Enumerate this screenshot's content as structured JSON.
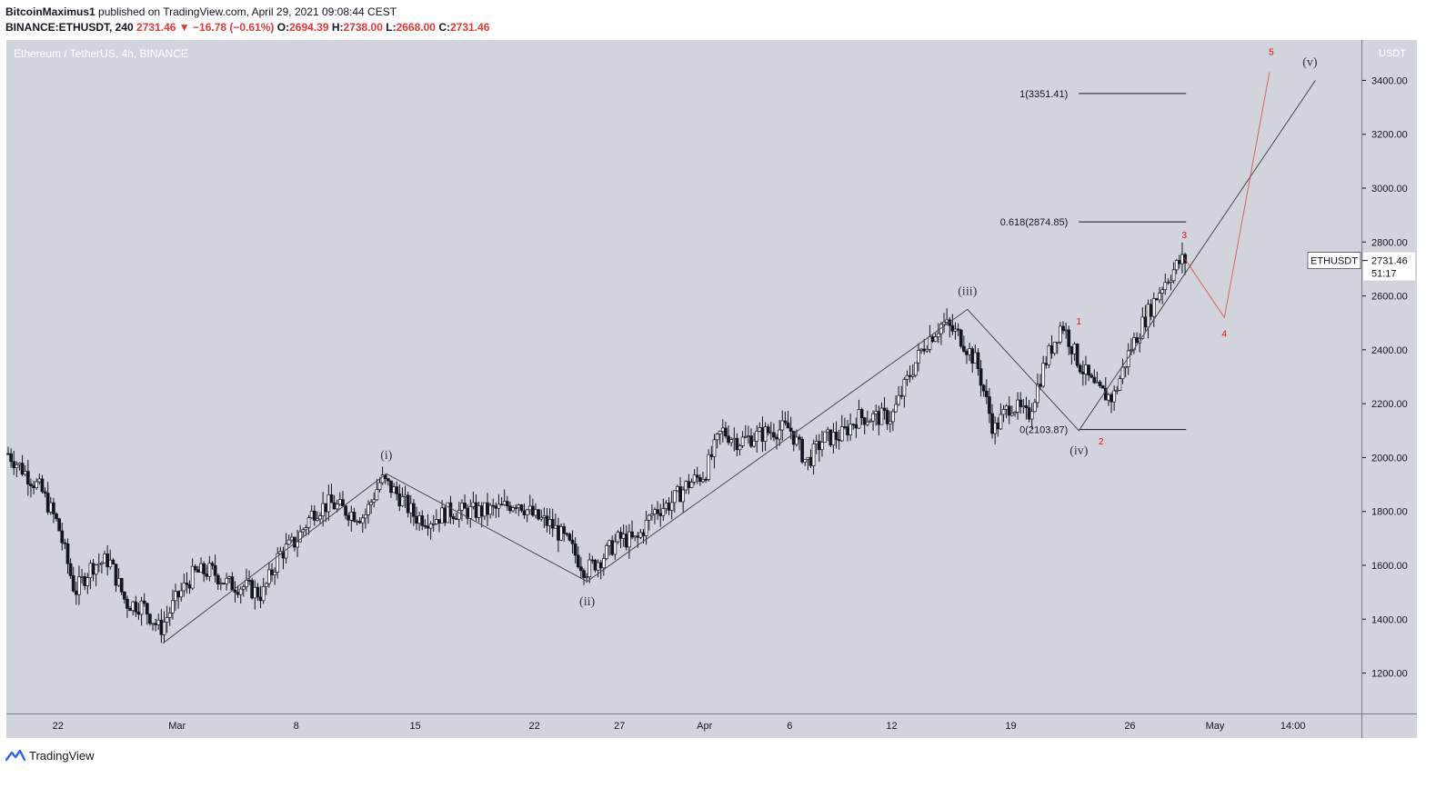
{
  "header": {
    "author": "BitcoinMaximus1",
    "published_text": " published on TradingView.com, April 29, 2021 09:08:44 CEST",
    "symbol_line": "BINANCE:ETHUSDT, 240",
    "last": "2731.46",
    "change_arrow": "▼",
    "change": "−16.78 (−0.61%)",
    "o_label": "O:",
    "o_value": "2694.39",
    "h_label": "H:",
    "h_value": "2738.00",
    "l_label": "L:",
    "l_value": "2668.00",
    "c_label": "C:",
    "c_value": "2731.46"
  },
  "chart_title": "Ethereum / TetherUS, 4h, BINANCE",
  "footer": {
    "brand": "TradingView",
    "logo_icon": "tradingview-logo-icon"
  },
  "colors": {
    "pane_bg": "#d1d4dc",
    "axis_bg": "#d1d4dc",
    "candle": "#131722",
    "wave_main": "#4a4a4a",
    "wave_sub": "#e53935",
    "red": "#ff0000",
    "fib": "#131722"
  },
  "chart_data": {
    "type": "candlestick",
    "title": "Ethereum / TetherUS, 4h, BINANCE",
    "currency_label": "USDT",
    "ylim": [
      1050,
      3550
    ],
    "y_ticks": [
      1200,
      1400,
      1600,
      1800,
      2000,
      2200,
      2400,
      2600,
      2800,
      3000,
      3200,
      3400
    ],
    "x_ticks": [
      "22",
      "Mar",
      "8",
      "15",
      "22",
      "27",
      "Apr",
      "6",
      "12",
      "19",
      "26",
      "May",
      "14:00"
    ],
    "price_label": {
      "symbol": "ETHUSDT",
      "value": "2731.46",
      "countdown": "51:17"
    },
    "price_path_anchors": [
      [
        "Feb 18",
        1950
      ],
      [
        "Feb 19",
        2020
      ],
      [
        "Feb 20",
        1950
      ],
      [
        "Feb 21",
        1880
      ],
      [
        "Feb 22",
        1750
      ],
      [
        "Feb 23",
        1500
      ],
      [
        "Feb 24",
        1600
      ],
      [
        "Feb 25",
        1620
      ],
      [
        "Feb 26",
        1460
      ],
      [
        "Feb 27",
        1450
      ],
      [
        "Feb 28",
        1360
      ],
      [
        "Mar 1",
        1480
      ],
      [
        "Mar 2",
        1570
      ],
      [
        "Mar 3",
        1580
      ],
      [
        "Mar 4",
        1530
      ],
      [
        "Mar 5",
        1520
      ],
      [
        "Mar 6",
        1490
      ],
      [
        "Mar 7",
        1640
      ],
      [
        "Mar 8",
        1690
      ],
      [
        "Mar 9",
        1800
      ],
      [
        "Mar 10",
        1830
      ],
      [
        "Mar 11",
        1800
      ],
      [
        "Mar 12",
        1780
      ],
      [
        "Mar 13",
        1920
      ],
      [
        "Mar 14",
        1860
      ],
      [
        "Mar 15",
        1780
      ],
      [
        "Mar 16",
        1770
      ],
      [
        "Mar 17",
        1800
      ],
      [
        "Mar 18",
        1800
      ],
      [
        "Mar 19",
        1800
      ],
      [
        "Mar 20",
        1810
      ],
      [
        "Mar 21",
        1840
      ],
      [
        "Mar 22",
        1780
      ],
      [
        "Mar 23",
        1750
      ],
      [
        "Mar 24",
        1680
      ],
      [
        "Mar 25",
        1580
      ],
      [
        "Mar 26",
        1630
      ],
      [
        "Mar 27",
        1700
      ],
      [
        "Mar 28",
        1690
      ],
      [
        "Mar 29",
        1800
      ],
      [
        "Mar 30",
        1830
      ],
      [
        "Mar 31",
        1900
      ],
      [
        "Apr 1",
        1940
      ],
      [
        "Apr 2",
        2100
      ],
      [
        "Apr 3",
        2060
      ],
      [
        "Apr 4",
        2080
      ],
      [
        "Apr 5",
        2100
      ],
      [
        "Apr 6",
        2110
      ],
      [
        "Apr 7",
        1980
      ],
      [
        "Apr 8",
        2070
      ],
      [
        "Apr 9",
        2080
      ],
      [
        "Apr 10",
        2150
      ],
      [
        "Apr 11",
        2150
      ],
      [
        "Apr 12",
        2150
      ],
      [
        "Apr 13",
        2300
      ],
      [
        "Apr 14",
        2430
      ],
      [
        "Apr 15",
        2500
      ],
      [
        "Apr 16",
        2450
      ],
      [
        "Apr 17",
        2350
      ],
      [
        "Apr 18",
        2100
      ],
      [
        "Apr 19",
        2200
      ],
      [
        "Apr 20",
        2150
      ],
      [
        "Apr 21",
        2350
      ],
      [
        "Apr 22",
        2500
      ],
      [
        "Apr 23",
        2350
      ],
      [
        "Apr 24",
        2250
      ],
      [
        "Apr 25",
        2220
      ],
      [
        "Apr 26",
        2400
      ],
      [
        "Apr 27",
        2530
      ],
      [
        "Apr 28",
        2650
      ],
      [
        "Apr 29",
        2731.46
      ]
    ],
    "wave_count": [
      {
        "label": "(i)",
        "date": "Mar 13",
        "price": 1940
      },
      {
        "label": "(ii)",
        "date": "Mar 25",
        "price": 1540
      },
      {
        "label": "(iii)",
        "date": "Apr 16",
        "price": 2550
      },
      {
        "label": "(iv)",
        "date": "Apr 23",
        "price": 2100
      },
      {
        "label": "(v)",
        "date": "May 6",
        "price": 3400
      }
    ],
    "wave_path_start": {
      "date": "Feb 28",
      "price": 1310
    },
    "sub_waves": [
      {
        "label": "1",
        "date": "Apr 23",
        "price": 2440
      },
      {
        "label": "2",
        "date": "Apr 24",
        "price": 2100
      },
      {
        "label": "3",
        "date": "Apr 29",
        "price": 2740
      },
      {
        "label": "4",
        "date": "May 1",
        "price": 2520
      },
      {
        "label": "5",
        "date": "May 4",
        "price": 3430
      }
    ],
    "fib_levels": [
      {
        "label": "1(3351.41)",
        "value": 3351.41
      },
      {
        "label": "0.618(2874.85)",
        "value": 2874.85
      },
      {
        "label": "0(2103.87)",
        "value": 2103.87
      }
    ]
  }
}
